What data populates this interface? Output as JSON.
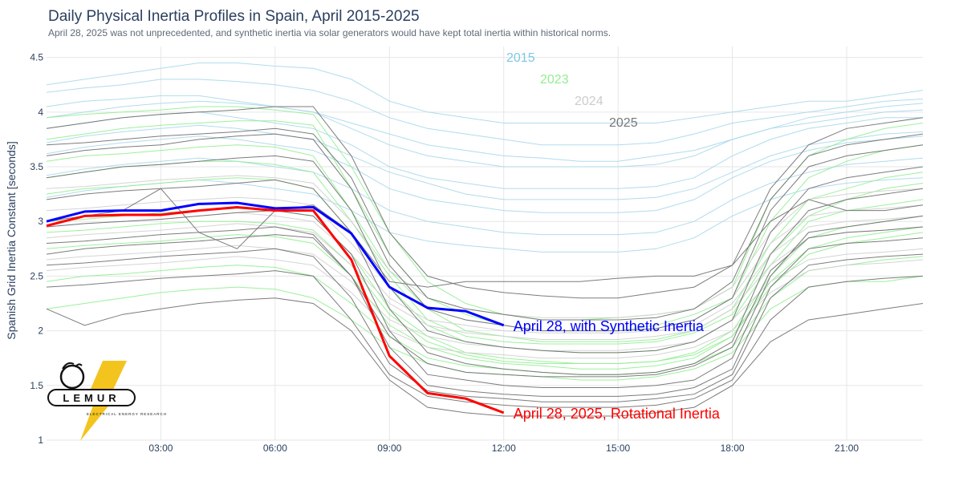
{
  "title": "Daily Physical Inertia Profiles in Spain, April 2015-2025",
  "subtitle": "April 28, 2025 was not unprecedented, and synthetic inertia via solar generators would have kept total inertia within historical norms.",
  "logo": {
    "name": "LEMUR",
    "tagline": "ELECTRICAL ENERGY RESEARCH"
  },
  "chart_data": {
    "type": "line",
    "title": "Daily Physical Inertia Profiles in Spain, April 2015-2025",
    "ylabel": "Spanish Grid Inertia Constant [seconds]",
    "xlabel": "",
    "ylim": [
      1,
      4.6
    ],
    "xlim": [
      0,
      23
    ],
    "yticks": [
      1,
      1.5,
      2,
      2.5,
      3,
      3.5,
      4,
      4.5
    ],
    "xticks": [
      {
        "hour": 3,
        "label": "03:00"
      },
      {
        "hour": 6,
        "label": "06:00"
      },
      {
        "hour": 9,
        "label": "09:00"
      },
      {
        "hour": 12,
        "label": "12:00"
      },
      {
        "hour": 15,
        "label": "15:00"
      },
      {
        "hour": 18,
        "label": "18:00"
      },
      {
        "hour": 21,
        "label": "21:00"
      }
    ],
    "grid": true,
    "legend": "inline labels",
    "year_groups": [
      {
        "year_label": "2015",
        "color": "#7ec8e3",
        "line_color": "#a7d8ea",
        "profiles": [
          [
            4.25,
            4.3,
            4.35,
            4.4,
            4.45,
            4.45,
            4.42,
            4.4,
            4.3,
            4.1,
            4.0,
            3.95,
            3.9,
            3.9,
            3.9,
            3.9,
            3.9,
            3.95,
            4.0,
            4.05,
            4.1,
            4.1,
            4.15,
            4.2
          ],
          [
            4.18,
            4.22,
            4.25,
            4.3,
            4.3,
            4.28,
            4.25,
            4.2,
            4.1,
            3.95,
            3.85,
            3.8,
            3.75,
            3.7,
            3.7,
            3.7,
            3.72,
            3.8,
            3.9,
            3.95,
            4.0,
            4.05,
            4.1,
            4.12
          ],
          [
            4.05,
            4.1,
            4.12,
            4.15,
            4.15,
            4.1,
            4.05,
            4.0,
            3.85,
            3.7,
            3.6,
            3.55,
            3.5,
            3.5,
            3.5,
            3.5,
            3.52,
            3.6,
            3.75,
            3.85,
            3.95,
            4.0,
            4.05,
            4.08
          ],
          [
            3.85,
            3.9,
            3.95,
            3.98,
            4.0,
            3.95,
            3.9,
            3.85,
            3.7,
            3.5,
            3.4,
            3.35,
            3.3,
            3.3,
            3.3,
            3.3,
            3.32,
            3.4,
            3.6,
            3.75,
            3.85,
            3.9,
            3.95,
            3.95
          ],
          [
            3.62,
            3.68,
            3.72,
            3.75,
            3.78,
            3.75,
            3.7,
            3.65,
            3.5,
            3.3,
            3.2,
            3.15,
            3.1,
            3.08,
            3.08,
            3.08,
            3.1,
            3.2,
            3.4,
            3.55,
            3.65,
            3.72,
            3.75,
            3.78
          ],
          [
            3.42,
            3.48,
            3.52,
            3.55,
            3.58,
            3.55,
            3.5,
            3.45,
            3.3,
            3.1,
            3.0,
            2.95,
            2.9,
            2.88,
            2.88,
            2.88,
            2.9,
            3.0,
            3.2,
            3.35,
            3.45,
            3.52,
            3.55,
            3.58
          ],
          [
            3.22,
            3.28,
            3.32,
            3.35,
            3.38,
            3.35,
            3.3,
            3.25,
            3.1,
            2.9,
            2.82,
            2.78,
            2.75,
            2.72,
            2.72,
            2.72,
            2.75,
            2.85,
            3.05,
            3.2,
            3.3,
            3.35,
            3.38,
            3.4
          ],
          [
            3.72,
            3.78,
            3.82,
            3.85,
            3.88,
            3.85,
            3.8,
            3.75,
            3.6,
            3.45,
            3.35,
            3.25,
            3.2,
            3.2,
            3.2,
            3.2,
            3.22,
            3.3,
            3.45,
            3.6,
            3.7,
            3.75,
            3.8,
            3.82
          ],
          [
            3.95,
            4.0,
            4.05,
            4.08,
            4.1,
            4.08,
            4.05,
            4.0,
            3.9,
            3.8,
            3.7,
            3.65,
            3.6,
            3.58,
            3.55,
            3.55,
            3.6,
            3.65,
            3.75,
            3.85,
            3.9,
            3.95,
            4.0,
            4.02
          ]
        ]
      },
      {
        "year_label": "2023",
        "color": "#90ee90",
        "line_color": "#90ee90",
        "profiles": [
          [
            3.95,
            3.98,
            4.0,
            4.02,
            4.05,
            4.05,
            4.02,
            3.98,
            3.5,
            2.9,
            2.45,
            2.25,
            2.15,
            2.1,
            2.1,
            2.12,
            2.15,
            2.2,
            2.4,
            3.2,
            3.6,
            3.75,
            3.85,
            3.9
          ],
          [
            3.75,
            3.8,
            3.85,
            3.88,
            3.9,
            3.92,
            3.92,
            3.88,
            3.3,
            2.7,
            2.3,
            2.15,
            2.05,
            2.0,
            2.0,
            2.0,
            2.05,
            2.15,
            2.3,
            3.0,
            3.4,
            3.55,
            3.65,
            3.7
          ],
          [
            3.55,
            3.6,
            3.62,
            3.65,
            3.68,
            3.7,
            3.68,
            3.6,
            3.1,
            2.55,
            2.2,
            2.0,
            1.95,
            1.9,
            1.9,
            1.9,
            1.92,
            2.0,
            2.2,
            2.8,
            3.2,
            3.3,
            3.4,
            3.45
          ],
          [
            3.25,
            3.3,
            3.32,
            3.35,
            3.38,
            3.4,
            3.38,
            3.3,
            2.9,
            2.4,
            2.05,
            1.9,
            1.85,
            1.82,
            1.8,
            1.8,
            1.82,
            1.9,
            2.1,
            2.6,
            3.0,
            3.1,
            3.15,
            3.2
          ],
          [
            3.0,
            3.02,
            3.05,
            3.08,
            3.1,
            3.12,
            3.1,
            3.05,
            2.7,
            2.2,
            1.95,
            1.8,
            1.75,
            1.72,
            1.7,
            1.7,
            1.72,
            1.8,
            2.0,
            2.5,
            2.85,
            2.95,
            3.0,
            3.05
          ],
          [
            2.75,
            2.78,
            2.8,
            2.82,
            2.85,
            2.88,
            2.86,
            2.8,
            2.5,
            2.05,
            1.85,
            1.75,
            1.7,
            1.68,
            1.65,
            1.65,
            1.68,
            1.75,
            1.95,
            2.4,
            2.7,
            2.8,
            2.85,
            2.9
          ],
          [
            2.45,
            2.5,
            2.52,
            2.55,
            2.58,
            2.6,
            2.58,
            2.5,
            2.25,
            1.95,
            1.75,
            1.68,
            1.65,
            1.62,
            1.6,
            1.6,
            1.62,
            1.7,
            1.85,
            2.3,
            2.55,
            2.6,
            2.65,
            2.68
          ],
          [
            2.2,
            2.25,
            2.3,
            2.35,
            2.38,
            2.4,
            2.38,
            2.3,
            2.1,
            1.85,
            1.7,
            1.62,
            1.6,
            1.58,
            1.55,
            1.55,
            1.58,
            1.65,
            1.8,
            2.2,
            2.4,
            2.45,
            2.45,
            2.5
          ],
          [
            3.4,
            3.45,
            3.5,
            3.52,
            3.55,
            3.55,
            3.52,
            3.45,
            3.0,
            2.5,
            2.1,
            1.95,
            1.9,
            1.88,
            1.88,
            1.88,
            1.9,
            1.98,
            2.15,
            2.7,
            3.05,
            3.2,
            3.3,
            3.35
          ],
          [
            2.9,
            2.92,
            2.95,
            2.98,
            3.0,
            3.0,
            2.98,
            2.92,
            2.6,
            2.15,
            1.9,
            1.78,
            1.72,
            1.7,
            1.7,
            1.7,
            1.72,
            1.78,
            1.95,
            2.45,
            2.75,
            2.85,
            2.9,
            2.95
          ]
        ]
      },
      {
        "year_label": "2024",
        "color": "#cccccc",
        "line_color": "#cfcfcf",
        "profiles": [
          [
            3.1,
            3.12,
            3.15,
            3.18,
            3.2,
            3.22,
            3.2,
            3.15,
            2.8,
            2.4,
            2.2,
            2.1,
            2.05,
            2.0,
            2.0,
            2.0,
            2.02,
            2.1,
            2.3,
            2.8,
            3.05,
            3.1,
            3.12,
            3.15
          ],
          [
            2.85,
            2.88,
            2.9,
            2.92,
            2.95,
            2.98,
            2.95,
            2.9,
            2.6,
            2.25,
            2.05,
            1.98,
            1.95,
            1.92,
            1.92,
            1.92,
            1.95,
            2.0,
            2.2,
            2.6,
            2.85,
            2.9,
            2.92,
            2.95
          ],
          [
            2.65,
            2.68,
            2.7,
            2.72,
            2.75,
            2.78,
            2.75,
            2.7,
            2.45,
            2.1,
            1.95,
            1.88,
            1.85,
            1.82,
            1.82,
            1.82,
            1.85,
            1.9,
            2.1,
            2.45,
            2.65,
            2.7,
            2.72,
            2.75
          ],
          [
            2.55,
            2.58,
            2.6,
            2.62,
            2.65,
            2.68,
            2.65,
            2.6,
            2.35,
            2.0,
            1.85,
            1.8,
            1.78,
            1.75,
            1.75,
            1.75,
            1.78,
            1.85,
            2.0,
            2.35,
            2.55,
            2.6,
            2.62,
            2.65
          ],
          [
            3.3,
            3.32,
            3.35,
            3.38,
            3.4,
            3.42,
            3.4,
            3.35,
            3.0,
            2.55,
            2.3,
            2.2,
            2.15,
            2.12,
            2.12,
            2.12,
            2.15,
            2.2,
            2.4,
            2.9,
            3.2,
            3.25,
            3.28,
            3.3
          ],
          [
            2.95,
            2.98,
            3.0,
            3.02,
            3.05,
            3.08,
            3.05,
            3.0,
            2.7,
            2.3,
            2.1,
            2.05,
            2.0,
            1.98,
            1.98,
            1.98,
            2.0,
            2.05,
            2.25,
            2.7,
            2.95,
            3.0,
            3.02,
            3.05
          ]
        ]
      },
      {
        "year_label": "2025",
        "color": "#777777",
        "line_color": "#6e6e6e",
        "profiles": [
          [
            3.85,
            3.9,
            3.95,
            3.98,
            4.0,
            4.02,
            4.05,
            4.05,
            3.6,
            2.9,
            2.5,
            2.4,
            2.35,
            2.32,
            2.3,
            2.3,
            2.35,
            2.4,
            2.6,
            3.3,
            3.7,
            3.85,
            3.9,
            3.95
          ],
          [
            3.6,
            3.65,
            3.68,
            3.7,
            3.75,
            3.78,
            3.8,
            3.75,
            3.3,
            2.6,
            2.2,
            2.1,
            2.05,
            2.0,
            2.0,
            2.0,
            2.02,
            2.1,
            2.3,
            3.1,
            3.5,
            3.6,
            3.65,
            3.7
          ],
          [
            3.4,
            3.45,
            3.5,
            3.52,
            3.55,
            3.58,
            3.6,
            3.55,
            3.1,
            2.4,
            2.0,
            1.9,
            1.85,
            1.82,
            1.8,
            1.8,
            1.82,
            1.9,
            2.1,
            2.9,
            3.3,
            3.4,
            3.45,
            3.5
          ],
          [
            3.2,
            3.25,
            3.28,
            3.3,
            3.32,
            3.35,
            3.38,
            3.3,
            2.9,
            2.2,
            1.8,
            1.7,
            1.65,
            1.62,
            1.6,
            1.6,
            1.62,
            1.7,
            1.9,
            2.7,
            3.1,
            3.2,
            3.25,
            3.3
          ],
          [
            2.95,
            2.98,
            3.0,
            3.02,
            3.05,
            3.08,
            3.1,
            3.05,
            2.7,
            2.0,
            1.6,
            1.55,
            1.5,
            1.48,
            1.48,
            1.48,
            1.5,
            1.55,
            1.75,
            2.5,
            2.9,
            2.95,
            3.0,
            3.05
          ],
          [
            2.8,
            2.82,
            2.85,
            2.88,
            2.9,
            2.92,
            2.95,
            2.88,
            2.5,
            1.85,
            1.5,
            1.45,
            1.42,
            1.4,
            1.4,
            1.4,
            1.42,
            1.48,
            1.65,
            2.4,
            2.75,
            2.8,
            2.82,
            2.85
          ],
          [
            2.6,
            2.62,
            2.65,
            2.68,
            2.7,
            2.72,
            2.75,
            2.68,
            2.3,
            1.7,
            1.45,
            1.4,
            1.38,
            1.35,
            1.35,
            1.35,
            1.38,
            1.42,
            1.6,
            2.3,
            2.6,
            2.65,
            2.68,
            2.7
          ],
          [
            2.4,
            2.42,
            2.45,
            2.48,
            2.5,
            2.52,
            2.55,
            2.5,
            2.1,
            1.6,
            1.4,
            1.35,
            1.32,
            1.3,
            1.3,
            1.3,
            1.32,
            1.38,
            1.55,
            2.1,
            2.4,
            2.45,
            2.48,
            2.5
          ],
          [
            2.2,
            2.05,
            2.15,
            2.2,
            2.25,
            2.28,
            2.3,
            2.25,
            2.0,
            1.55,
            1.3,
            1.25,
            1.22,
            1.22,
            1.22,
            1.22,
            1.25,
            1.3,
            1.5,
            1.9,
            2.1,
            2.15,
            2.2,
            2.25
          ],
          [
            3.7,
            3.72,
            3.75,
            3.78,
            3.8,
            3.82,
            3.85,
            3.8,
            3.4,
            2.7,
            2.3,
            2.2,
            2.15,
            2.1,
            2.1,
            2.1,
            2.12,
            2.2,
            2.45,
            3.2,
            3.6,
            3.7,
            3.75,
            3.8
          ],
          [
            3.0,
            3.05,
            3.1,
            3.3,
            2.9,
            2.75,
            3.1,
            3.15,
            2.9,
            2.45,
            2.4,
            2.45,
            2.45,
            2.45,
            2.45,
            2.48,
            2.5,
            2.5,
            2.6,
            3.0,
            3.2,
            3.1,
            3.1,
            3.15
          ],
          [
            2.7,
            2.75,
            2.78,
            2.8,
            2.82,
            2.85,
            2.88,
            2.85,
            2.5,
            1.95,
            1.7,
            1.62,
            1.6,
            1.58,
            1.58,
            1.58,
            1.6,
            1.68,
            1.85,
            2.55,
            2.85,
            2.9,
            2.92,
            2.95
          ]
        ]
      }
    ],
    "highlight_series": [
      {
        "name": "April 28, with Synthetic Inertia",
        "color": "#0000ff",
        "x": [
          0,
          1,
          2,
          3,
          4,
          5,
          6,
          7,
          8,
          9,
          10,
          11,
          12
        ],
        "values": [
          3.0,
          3.09,
          3.1,
          3.1,
          3.16,
          3.17,
          3.12,
          3.13,
          2.89,
          2.4,
          2.21,
          2.18,
          2.05
        ]
      },
      {
        "name": "April 28, 2025, Rotational Inertia",
        "color": "#ff0000",
        "x": [
          0,
          1,
          2,
          3,
          4,
          5,
          6,
          7,
          8,
          9,
          10,
          11,
          12
        ],
        "values": [
          2.96,
          3.05,
          3.06,
          3.06,
          3.1,
          3.13,
          3.1,
          3.1,
          2.65,
          1.77,
          1.43,
          1.38,
          1.25
        ]
      }
    ]
  }
}
